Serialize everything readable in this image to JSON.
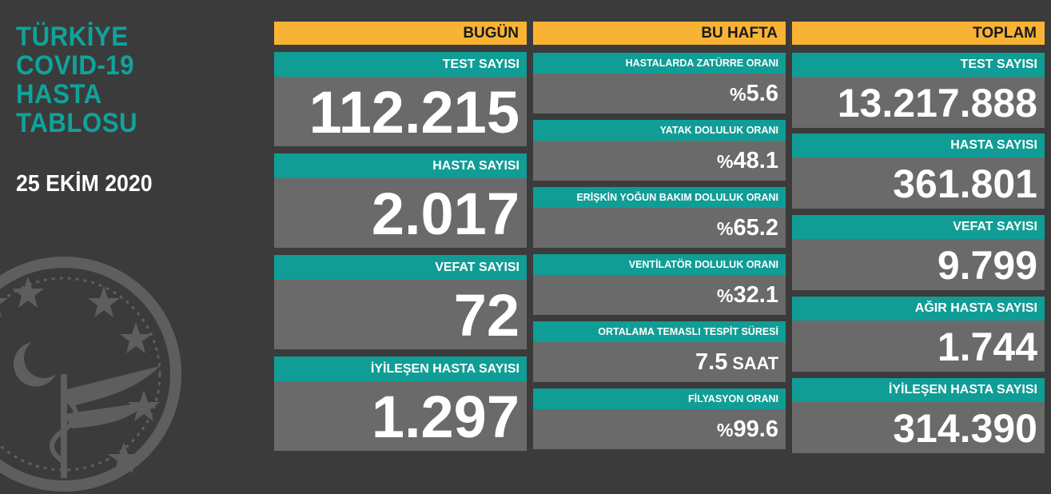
{
  "title": {
    "lines": [
      "TÜRKİYE",
      "COVID-19",
      "HASTA",
      "TABLOSU"
    ]
  },
  "date": "25 EKİM 2020",
  "columns": {
    "today": {
      "header": "BUGÜN",
      "items": [
        {
          "label": "TEST SAYISI",
          "value": "112.215"
        },
        {
          "label": "HASTA SAYISI",
          "value": "2.017"
        },
        {
          "label": "VEFAT SAYISI",
          "value": "72"
        },
        {
          "label": "İYİLEŞEN HASTA SAYISI",
          "value": "1.297"
        }
      ]
    },
    "week": {
      "header": "BU HAFTA",
      "items": [
        {
          "label": "HASTALARDA ZATÜRRE ORANI",
          "prefix": "%",
          "value": "5.6",
          "suffix": ""
        },
        {
          "label": "YATAK DOLULUK ORANI",
          "prefix": "%",
          "value": "48.1",
          "suffix": ""
        },
        {
          "label": "ERİŞKİN YOĞUN BAKIM DOLULUK ORANI",
          "prefix": "%",
          "value": "65.2",
          "suffix": ""
        },
        {
          "label": "VENTİLATÖR DOLULUK ORANI",
          "prefix": "%",
          "value": "32.1",
          "suffix": ""
        },
        {
          "label": "ORTALAMA TEMASLI TESPİT SÜRESİ",
          "prefix": "",
          "value": "7.5",
          "suffix": " SAAT"
        },
        {
          "label": "FİLYASYON ORANI",
          "prefix": "%",
          "value": "99.6",
          "suffix": ""
        }
      ]
    },
    "total": {
      "header": "TOPLAM",
      "items": [
        {
          "label": "TEST SAYISI",
          "value": "13.217.888"
        },
        {
          "label": "HASTA SAYISI",
          "value": "361.801"
        },
        {
          "label": "VEFAT SAYISI",
          "value": "9.799"
        },
        {
          "label": "AĞIR HASTA SAYISI",
          "value": "1.744"
        },
        {
          "label": "İYİLEŞEN HASTA SAYISI",
          "value": "314.390"
        }
      ]
    }
  },
  "colors": {
    "teal": "#109d96",
    "orange": "#f9b334",
    "panel": "#6a6a6a",
    "background": "#3b3b3b"
  },
  "icons": {
    "emblem": "ministry-of-health-emblem-icon"
  }
}
